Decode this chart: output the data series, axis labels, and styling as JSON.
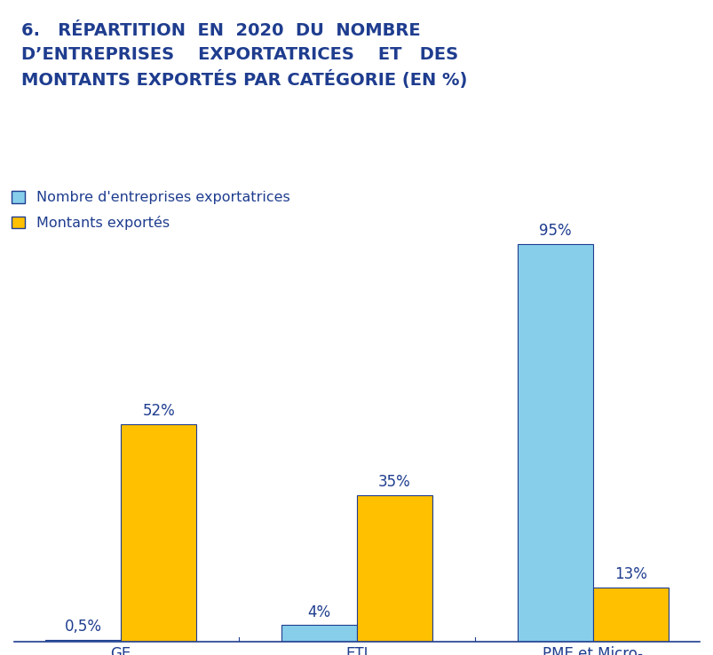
{
  "title_lines": [
    "6.   RÉPARTITION  EN  2020  DU  NOMBRE",
    "D’ENTREPRISES    EXPORTATRICES    ET   DES",
    "MONTANTS EXPORTÉS PAR CATÉGORIE (EN %)"
  ],
  "title_color": "#1F3D8F",
  "categories": [
    "GE",
    "ETI",
    "PME et Micro-\nentreprises"
  ],
  "series1_label": "Nombre d'entreprises exportatrices",
  "series2_label": "Montants exportés",
  "series1_values": [
    0.5,
    4,
    95
  ],
  "series2_values": [
    52,
    35,
    13
  ],
  "series1_color": "#87CEEB",
  "series2_color": "#FFC000",
  "series1_bar_labels": [
    "0,5%",
    "4%",
    "95%"
  ],
  "series2_bar_labels": [
    "52%",
    "35%",
    "13%"
  ],
  "bar_edge_color": "#1F3D8F",
  "text_color": "#1F3D8F",
  "background_color": "#FFFFFF",
  "ylim": [
    0,
    105
  ],
  "bar_width": 0.32,
  "label_fontsize": 12,
  "legend_fontsize": 11.5,
  "tick_fontsize": 12,
  "title_fontsize": 14
}
